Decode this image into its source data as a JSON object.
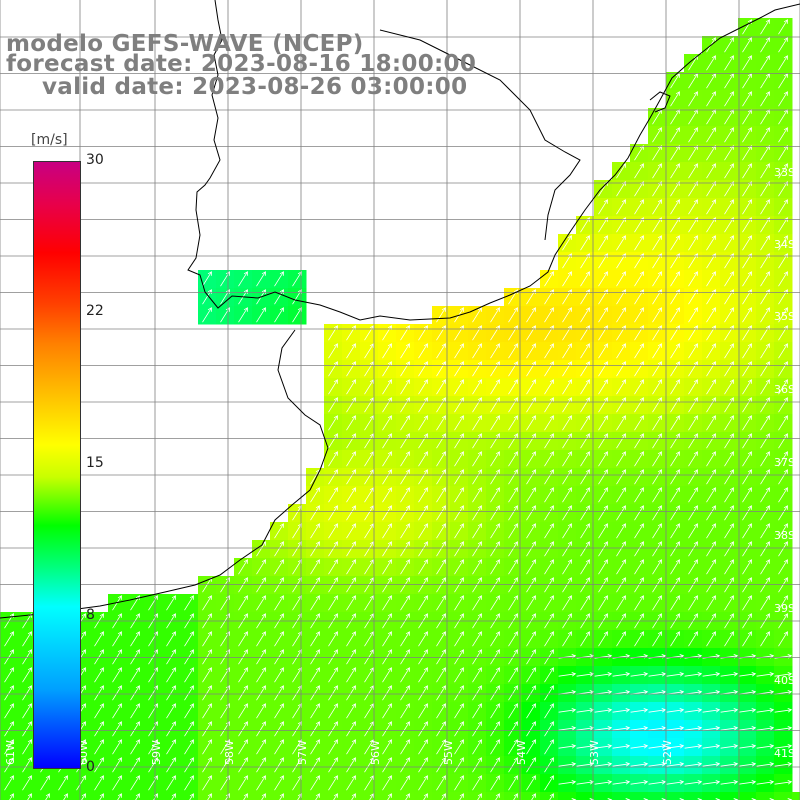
{
  "title": {
    "line1": "modelo GEFS-WAVE (NCEP)",
    "line2": "forecast date: 2023-08-16 18:00:00",
    "line3": "valid date: 2023-08-26 03:00:00"
  },
  "colorbar": {
    "unit": "[m/s]",
    "ticks": [
      "30",
      "22",
      "15",
      "8",
      "0"
    ],
    "range": [
      0,
      30
    ],
    "colors": [
      "#0000ff",
      "#00ffff",
      "#00ff00",
      "#ffff00",
      "#ff8000",
      "#ff0000",
      "#c80082"
    ]
  },
  "map": {
    "lat_labels": [
      "33S",
      "34S",
      "35S",
      "36S",
      "37S",
      "38S",
      "39S",
      "40S",
      "41S"
    ],
    "lon_labels": [
      "61W",
      "60W",
      "59W",
      "58W",
      "57W",
      "56W",
      "55W",
      "54W",
      "53W",
      "52W"
    ],
    "land_color": "#ffffff",
    "grid_color": "#808080",
    "coast_color": "#000000",
    "arrow_color": "#ffffff",
    "wind_direction": "from south-west (arrows pointing north-east)"
  }
}
